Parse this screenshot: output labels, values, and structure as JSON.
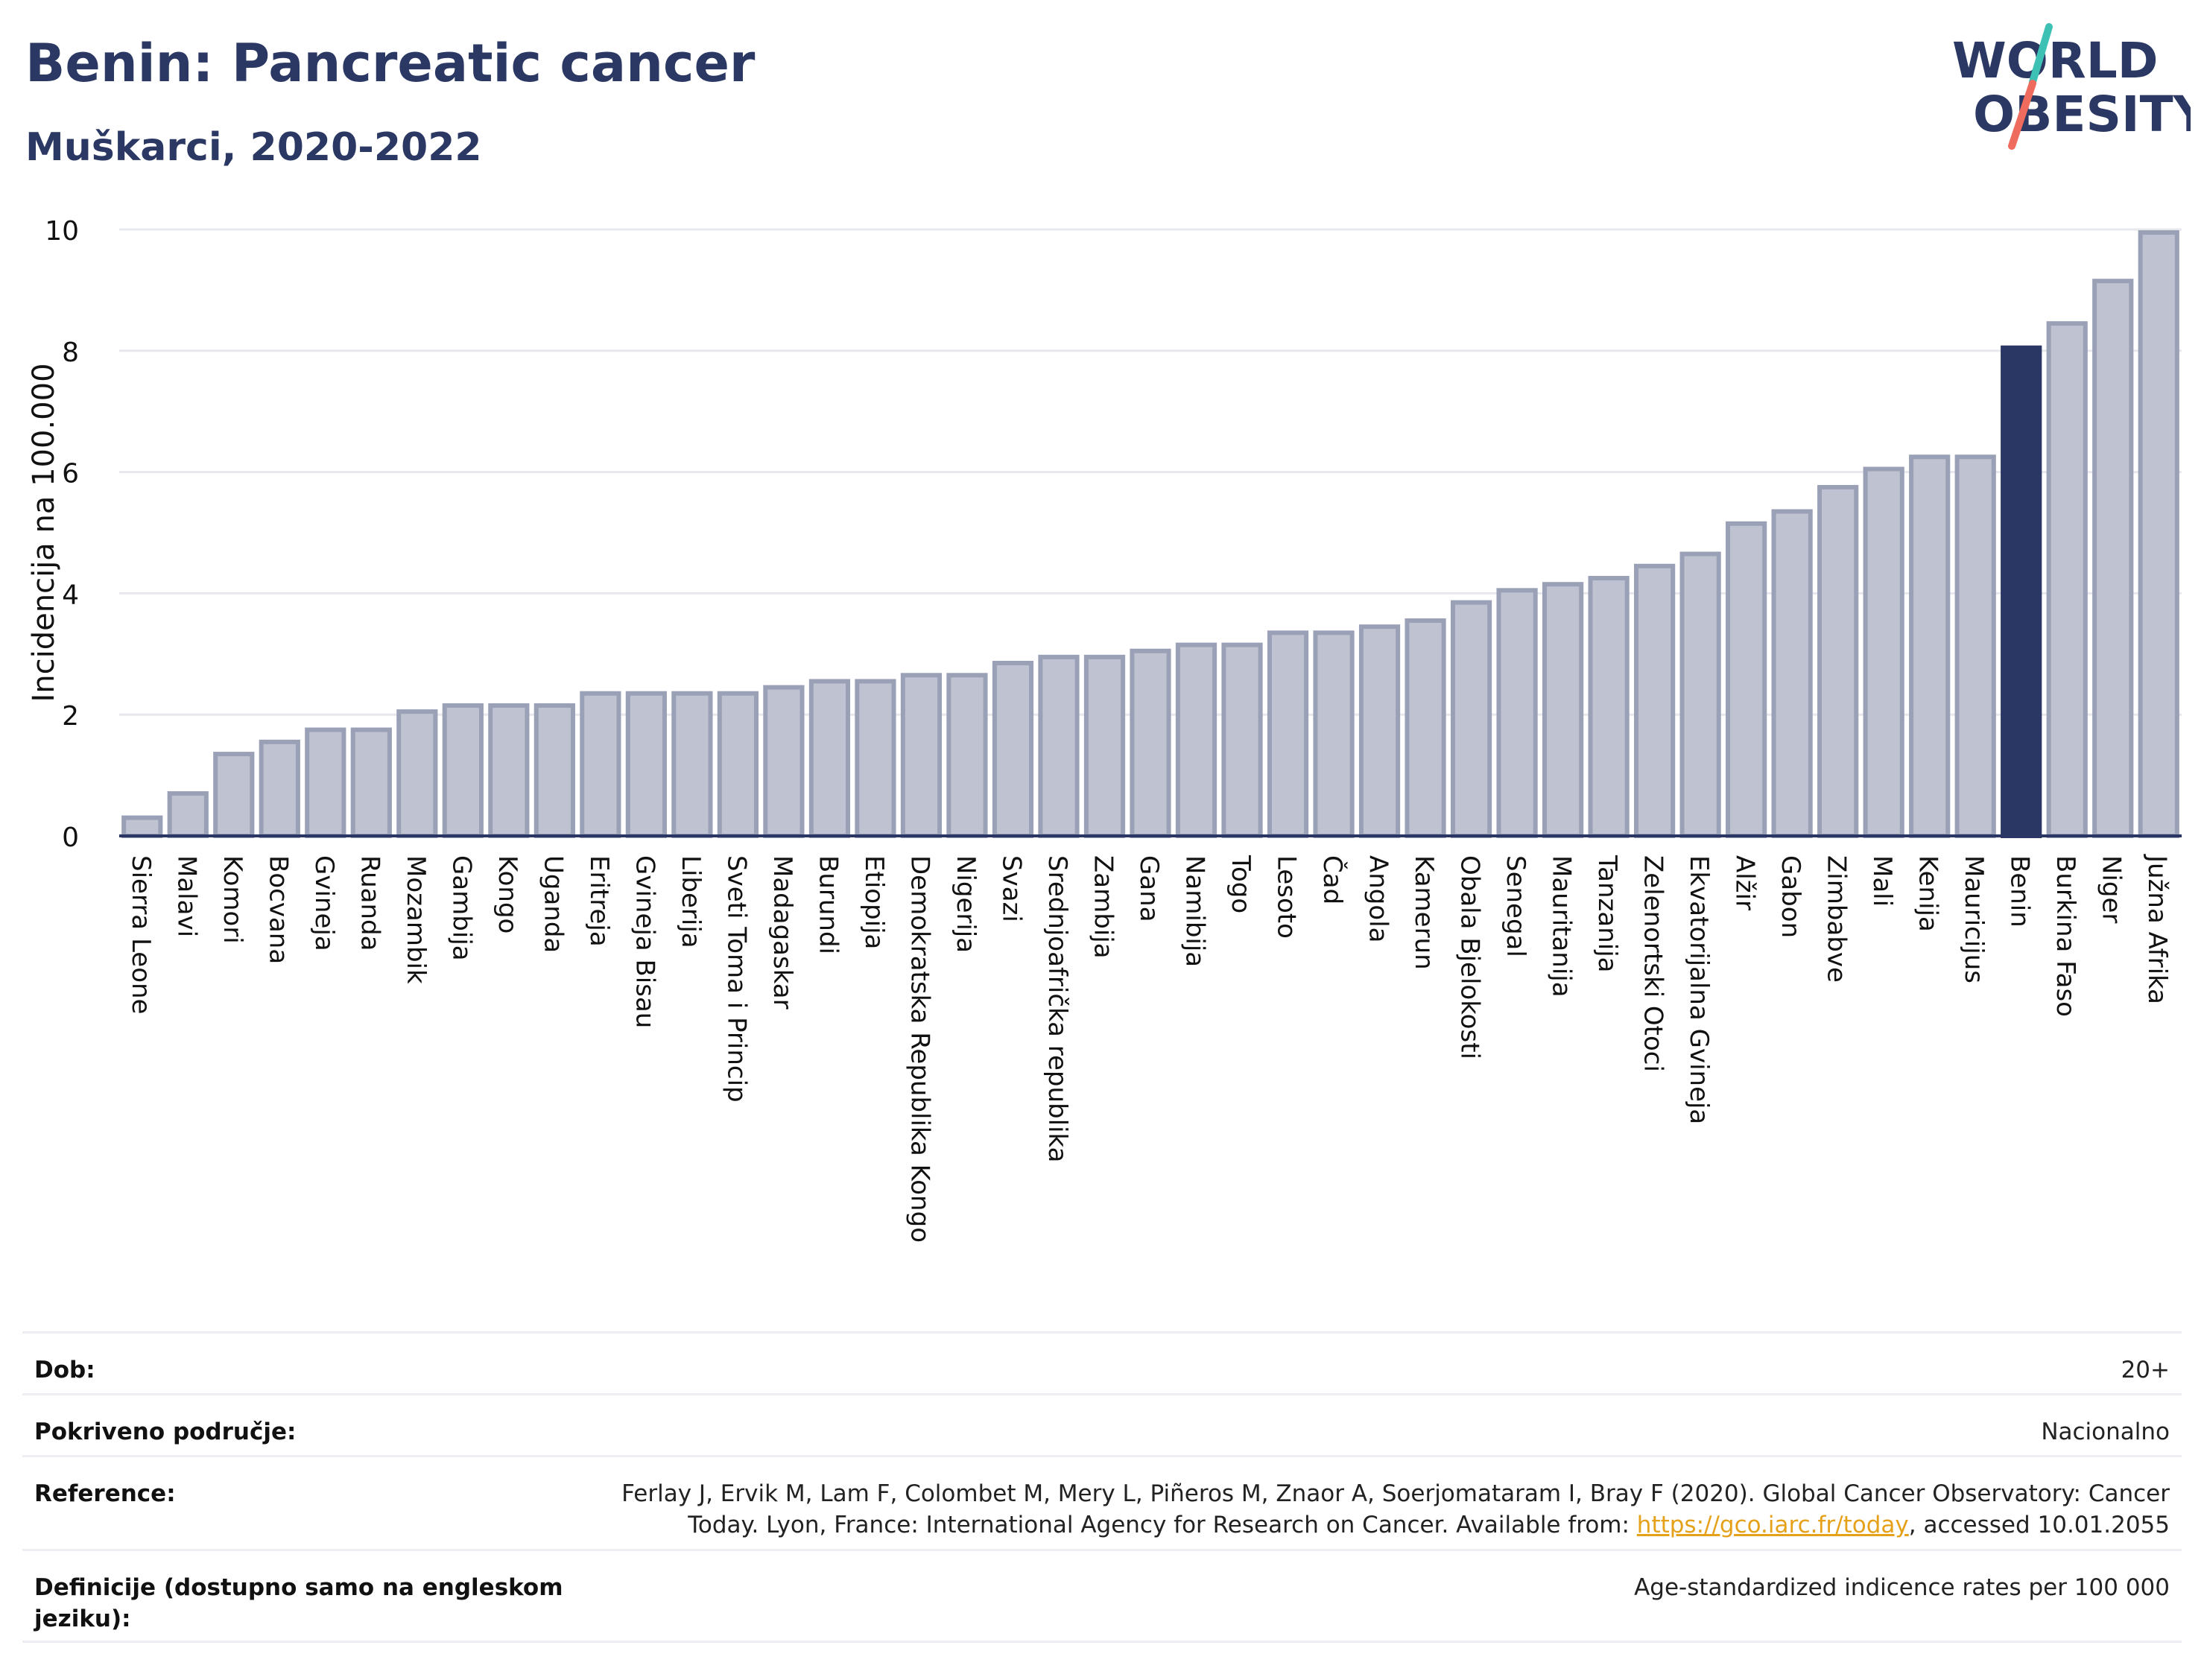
{
  "header": {
    "title": "Benin: Pancreatic cancer",
    "subtitle": "Muškarci, 2020-2022",
    "logo_line1": "WORLD",
    "logo_line2": "OBESITY"
  },
  "colors": {
    "bar_default": "#bfc3d1",
    "bar_default_stroke": "#9aa0b6",
    "bar_highlight": "#2a3663",
    "grid": "#e6e8ee",
    "axis": "#2a3663",
    "logo_dark": "#2a3863",
    "logo_teal": "#3ec1b5",
    "logo_coral": "#ee6b5d"
  },
  "chart_data": {
    "type": "bar",
    "ylabel": "Incidencija na 100.000",
    "xlabel": "",
    "ylim": [
      0,
      10
    ],
    "yticks": [
      0,
      2,
      4,
      6,
      8,
      10
    ],
    "grid": true,
    "highlight": "Benin",
    "categories": [
      "Sierra Leone",
      "Malavi",
      "Komori",
      "Bocvana",
      "Gvineja",
      "Ruanda",
      "Mozambik",
      "Gambija",
      "Kongo",
      "Uganda",
      "Eritreja",
      "Gvineja Bisau",
      "Liberija",
      "Sveti Toma i Princip",
      "Madagaskar",
      "Burundi",
      "Etiopija",
      "Demokratska Republika Kongo",
      "Nigerija",
      "Svazi",
      "Srednjoafrička republika",
      "Zambija",
      "Gana",
      "Namibija",
      "Togo",
      "Lesoto",
      "Čad",
      "Angola",
      "Kamerun",
      "Obala Bjelokosti",
      "Senegal",
      "Mauritanija",
      "Tanzanija",
      "Zelenortski Otoci",
      "Ekvatorijalna Gvineja",
      "Alžir",
      "Gabon",
      "Zimbabve",
      "Mali",
      "Kenija",
      "Mauricijus",
      "Benin",
      "Burkina Faso",
      "Niger",
      "Južna Afrika"
    ],
    "values": [
      0.3,
      0.7,
      1.35,
      1.55,
      1.75,
      1.75,
      2.05,
      2.15,
      2.15,
      2.15,
      2.35,
      2.35,
      2.35,
      2.35,
      2.45,
      2.55,
      2.55,
      2.65,
      2.65,
      2.85,
      2.95,
      2.95,
      3.05,
      3.15,
      3.15,
      3.35,
      3.35,
      3.45,
      3.55,
      3.85,
      4.05,
      4.15,
      4.25,
      4.45,
      4.65,
      5.15,
      5.35,
      5.75,
      6.05,
      6.25,
      6.25,
      8.05,
      8.45,
      9.15,
      9.95
    ]
  },
  "footer": {
    "rows": [
      {
        "label": "Dob:",
        "value": "20+"
      },
      {
        "label": "Pokriveno područje:",
        "value": "Nacionalno"
      },
      {
        "label": "Reference:",
        "value_line1": "Ferlay J, Ervik M, Lam F, Colombet M, Mery L, Piñeros M, Znaor A, Soerjomataram I, Bray F (2020). Global Cancer Observatory: Cancer",
        "value_line2_pre": "Today. Lyon, France: International Agency for Research on Cancer. Available from: ",
        "link": "https://gco.iarc.fr/today",
        "value_line2_post": ", accessed 10.01.2055"
      },
      {
        "label": "Definicije (dostupno samo na engleskom jeziku):",
        "value": "Age-standardized indicence rates per 100 000"
      }
    ]
  }
}
